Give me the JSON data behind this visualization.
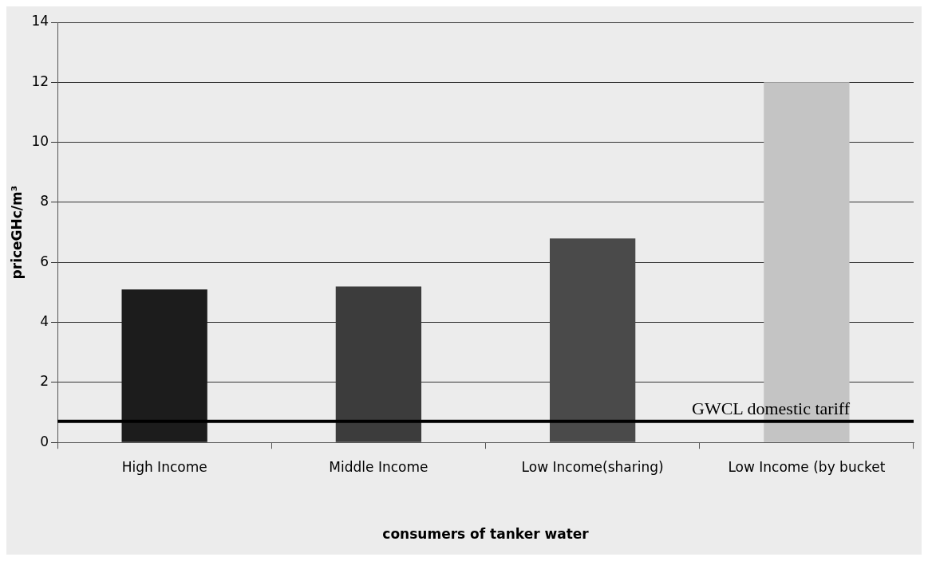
{
  "chart_data": {
    "type": "bar",
    "xlabel": "consumers of tanker water",
    "ylabel": "priceGHc/m³",
    "categories": [
      "High Income",
      "Middle Income",
      "Low Income(sharing)",
      "Low Income (by bucket"
    ],
    "values": [
      5.1,
      5.2,
      6.8,
      12.0
    ],
    "colors": [
      "#1c1c1c",
      "#3c3c3c",
      "#4a4a4a",
      "#c4c4c4"
    ],
    "ylim": [
      0,
      14
    ],
    "yticks": [
      0,
      2,
      4,
      6,
      8,
      10,
      12,
      14
    ],
    "grid": "y",
    "legend": false,
    "ref_lines": [
      {
        "axis": "y",
        "value": 0.7,
        "label": "GWCL domestic tariff",
        "color": "#000000"
      }
    ]
  }
}
